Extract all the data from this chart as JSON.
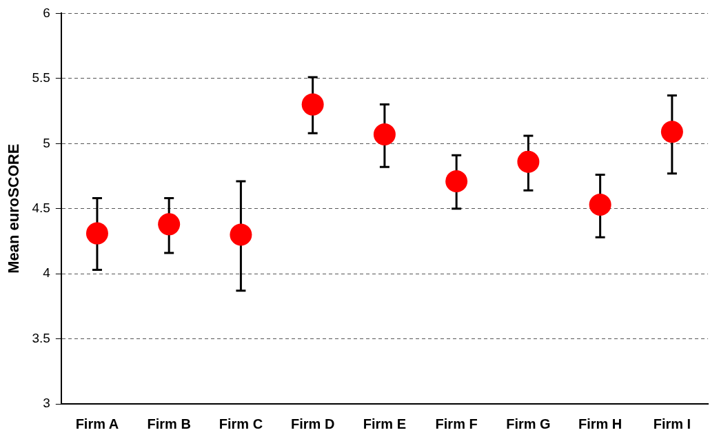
{
  "chart_data": {
    "type": "scatter",
    "ylabel": "Mean euroSCORE",
    "categories": [
      "Firm A",
      "Firm B",
      "Firm C",
      "Firm D",
      "Firm E",
      "Firm F",
      "Firm G",
      "Firm H",
      "Firm I"
    ],
    "series": [
      {
        "color": "#ff0000",
        "values": [
          4.31,
          4.38,
          4.3,
          5.3,
          5.07,
          4.71,
          4.86,
          4.53,
          5.09
        ],
        "errors": [
          [
            4.03,
            4.58
          ],
          [
            4.16,
            4.58
          ],
          [
            3.87,
            4.71
          ],
          [
            5.08,
            5.51
          ],
          [
            4.82,
            5.3
          ],
          [
            4.5,
            4.91
          ],
          [
            4.64,
            5.06
          ],
          [
            4.28,
            4.76
          ],
          [
            4.77,
            5.37
          ]
        ]
      }
    ],
    "ylim": [
      3,
      6
    ],
    "yticks": [
      3,
      3.5,
      4,
      4.5,
      5,
      5.5,
      6
    ],
    "grid": "y",
    "marker": "circle",
    "legend": false
  }
}
